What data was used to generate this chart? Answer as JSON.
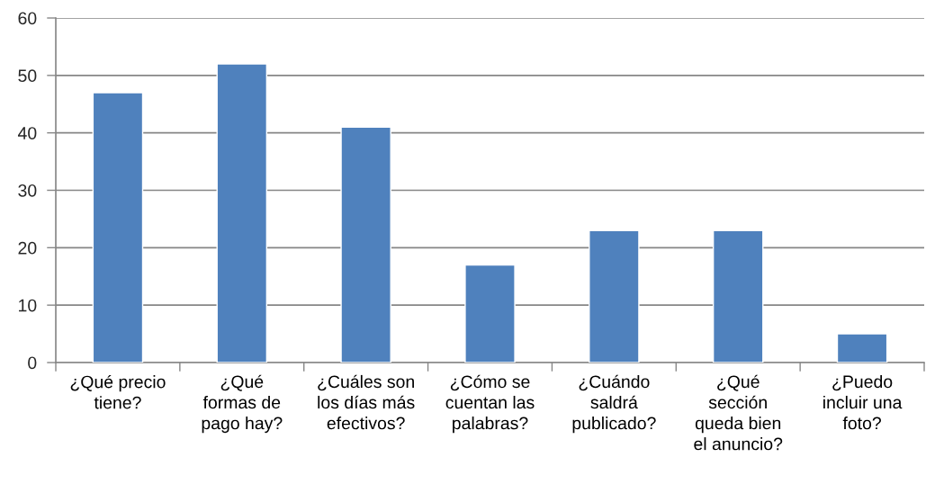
{
  "chart_data": {
    "type": "bar",
    "categories": [
      "¿Qué precio\ntiene?",
      "¿Qué\nformas de\npago hay?",
      "¿Cuáles son\nlos días más\nefectivos?",
      "¿Cómo se\ncuentan las\npalabras?",
      "¿Cuándo\nsaldrá\npublicado?",
      "¿Qué\nsección\nqueda bien\nel anuncio?",
      "¿Puedo\nincluir una\nfoto?"
    ],
    "values": [
      47,
      52,
      41,
      17,
      23,
      23,
      5
    ],
    "color": "#4f81bd",
    "ylim": [
      0,
      60
    ],
    "yticks": [
      0,
      10,
      20,
      30,
      40,
      50,
      60
    ],
    "grid": "y"
  }
}
